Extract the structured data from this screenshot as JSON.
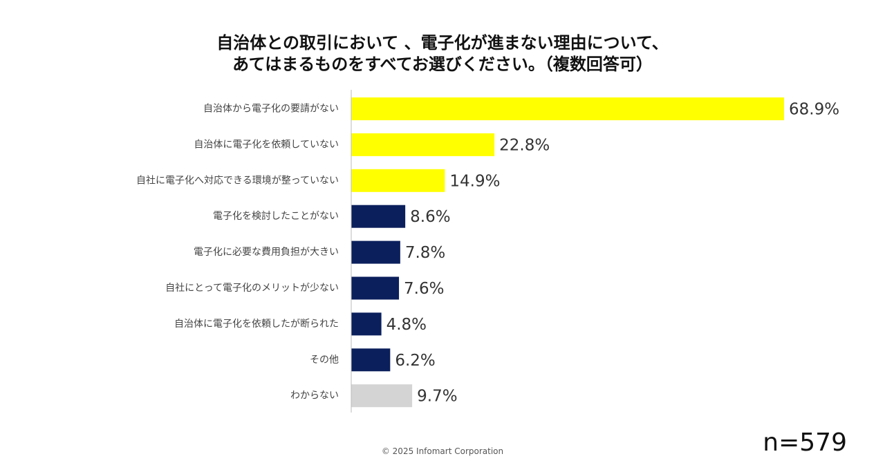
{
  "title_line1": "自治体との取引において 、電子化が進まない理由について、",
  "title_line2": "あてはまるものをすべてお選びください。（複数回答可）",
  "footer": "© 2025 Infomart Corporation",
  "sample_size": "n=579",
  "colors": {
    "highlight": "#ffff00",
    "standard": "#0b1f5c",
    "unknown": "#d4d4d4",
    "axis": "#bbbbbb"
  },
  "chart_data": {
    "type": "bar",
    "orientation": "horizontal",
    "unit": "%",
    "xlim": [
      0,
      70
    ],
    "grid": false,
    "categories": [
      "自治体から電子化の要請がない",
      "自治体に電子化を依頼していない",
      "自社に電子化へ対応できる環境が整っていない",
      "電子化を検討したことがない",
      "電子化に必要な費用負担が大きい",
      "自社にとって電子化のメリットが少ない",
      "自治体に電子化を依頼したが断られた",
      "その他",
      "わからない"
    ],
    "values": [
      68.9,
      22.8,
      14.9,
      8.6,
      7.8,
      7.6,
      4.8,
      6.2,
      9.7
    ],
    "value_labels": [
      "68.9%",
      "22.8%",
      "14.9%",
      "8.6%",
      "7.8%",
      "7.6%",
      "4.8%",
      "6.2%",
      "9.7%"
    ],
    "bar_color_keys": [
      "highlight",
      "highlight",
      "highlight",
      "standard",
      "standard",
      "standard",
      "standard",
      "standard",
      "unknown"
    ]
  }
}
